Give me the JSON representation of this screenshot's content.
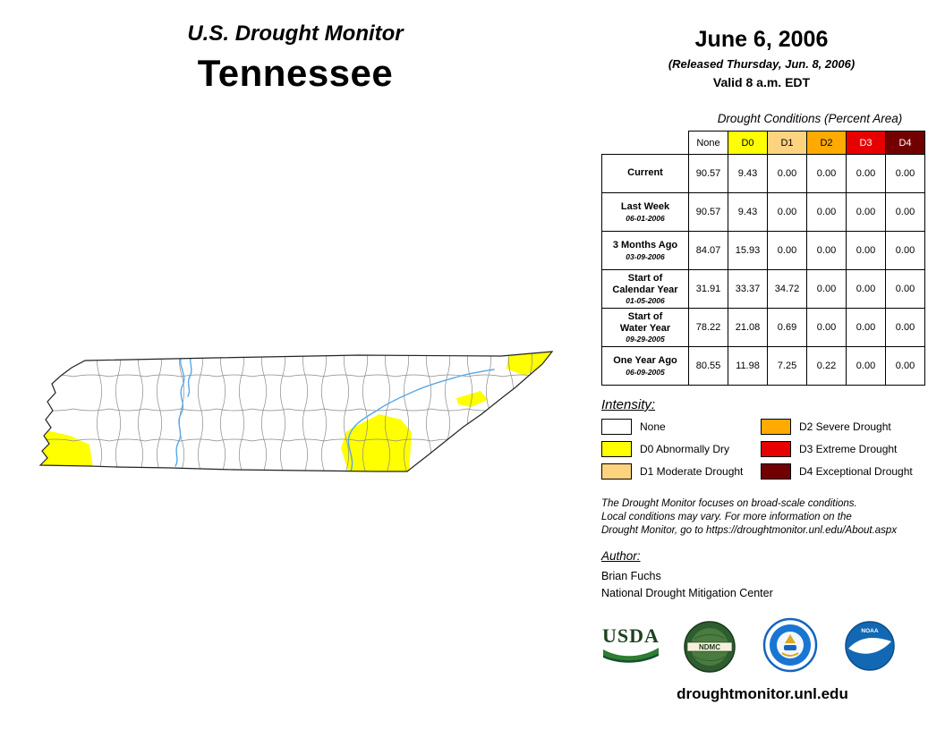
{
  "header": {
    "title_line1": "U.S. Drought Monitor",
    "title_line2": "Tennessee",
    "date": "June 6, 2006",
    "released": "(Released Thursday, Jun. 8, 2006)",
    "valid": "Valid 8 a.m. EDT"
  },
  "table": {
    "title": "Drought Conditions (Percent Area)",
    "columns": [
      "None",
      "D0",
      "D1",
      "D2",
      "D3",
      "D4"
    ],
    "column_colors": [
      "#FFFFFF",
      "#FFFF00",
      "#FCD37F",
      "#FFAA00",
      "#E60000",
      "#730000"
    ],
    "rows": [
      {
        "label": "Current",
        "sub": "",
        "values": [
          "90.57",
          "9.43",
          "0.00",
          "0.00",
          "0.00",
          "0.00"
        ]
      },
      {
        "label": "Last Week",
        "sub": "06-01-2006",
        "values": [
          "90.57",
          "9.43",
          "0.00",
          "0.00",
          "0.00",
          "0.00"
        ]
      },
      {
        "label": "3 Months Ago",
        "sub": "03-09-2006",
        "values": [
          "84.07",
          "15.93",
          "0.00",
          "0.00",
          "0.00",
          "0.00"
        ]
      },
      {
        "label": "Start of\nCalendar Year",
        "sub": "01-05-2006",
        "values": [
          "31.91",
          "33.37",
          "34.72",
          "0.00",
          "0.00",
          "0.00"
        ]
      },
      {
        "label": "Start of\nWater Year",
        "sub": "09-29-2005",
        "values": [
          "78.22",
          "21.08",
          "0.69",
          "0.00",
          "0.00",
          "0.00"
        ]
      },
      {
        "label": "One Year Ago",
        "sub": "06-09-2005",
        "values": [
          "80.55",
          "11.98",
          "7.25",
          "0.22",
          "0.00",
          "0.00"
        ]
      }
    ]
  },
  "legend": {
    "title": "Intensity:",
    "items": [
      {
        "label": "None",
        "color": "#FFFFFF"
      },
      {
        "label": "D0 Abnormally Dry",
        "color": "#FFFF00"
      },
      {
        "label": "D1 Moderate Drought",
        "color": "#FCD37F"
      },
      {
        "label": "D2 Severe Drought",
        "color": "#FFAA00"
      },
      {
        "label": "D3 Extreme Drought",
        "color": "#E60000"
      },
      {
        "label": "D4 Exceptional Drought",
        "color": "#730000"
      }
    ]
  },
  "disclaimer": {
    "line1": "The Drought Monitor focuses on broad-scale conditions.",
    "line2": "Local conditions may vary. For more information on the",
    "line3": "Drought Monitor, go to https://droughtmonitor.unl.edu/About.aspx"
  },
  "author": {
    "title": "Author:",
    "name": "Brian Fuchs",
    "org": "National Drought Mitigation Center"
  },
  "logos": {
    "usda": "USDA",
    "ndmc": "NDMC",
    "noaa": "NOAA"
  },
  "footer": {
    "url": "droughtmonitor.unl.edu"
  }
}
